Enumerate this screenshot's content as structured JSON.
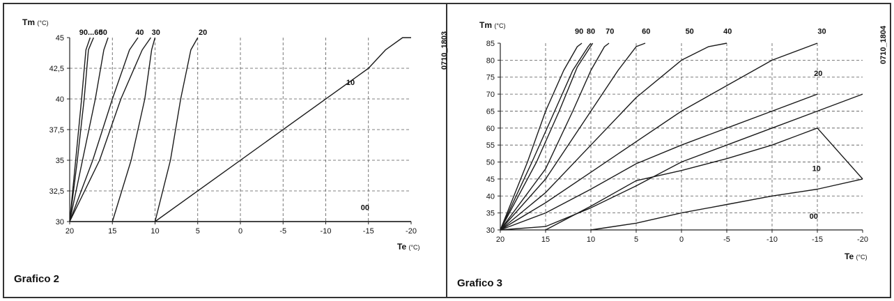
{
  "colors": {
    "line": "#1a1a1a",
    "grid": "#555555",
    "background": "#ffffff"
  },
  "chart_data": [
    {
      "type": "line",
      "caption": "Grafico 2",
      "code": "0710_1803",
      "ylabel": "Tm",
      "ylabel_unit": "(°C)",
      "xlabel": "Te",
      "xlabel_unit": "(°C)",
      "xlim": [
        20,
        -20
      ],
      "ylim": [
        30,
        45
      ],
      "x_ticks": [
        20,
        15,
        10,
        5,
        0,
        -5,
        -10,
        -15,
        -20
      ],
      "x_tick_labels": [
        "20",
        "15",
        "10",
        "5",
        "0",
        "-5",
        "-10",
        "-15",
        "-20"
      ],
      "y_ticks": [
        30,
        32.5,
        35,
        37.5,
        40,
        42.5,
        45
      ],
      "y_tick_labels": [
        "30",
        "32,5",
        "35",
        "37,5",
        "40",
        "42,5",
        "45"
      ],
      "grid": true,
      "series": [
        {
          "name": "90...60",
          "label_pos": [
            17.5,
            45
          ],
          "points": [
            [
              20,
              30
            ],
            [
              19.3,
              35
            ],
            [
              18.6,
              40
            ],
            [
              18.1,
              44
            ],
            [
              17.6,
              45
            ]
          ]
        },
        {
          "name": "",
          "points": [
            [
              20,
              30
            ],
            [
              19.1,
              35
            ],
            [
              18.3,
              40
            ],
            [
              17.8,
              44
            ],
            [
              17.2,
              45
            ]
          ]
        },
        {
          "name": "50",
          "label_pos": [
            16.1,
            45
          ],
          "points": [
            [
              20,
              30
            ],
            [
              18.5,
              35
            ],
            [
              17,
              40
            ],
            [
              16,
              44
            ],
            [
              15.5,
              45
            ]
          ]
        },
        {
          "name": "40",
          "label_pos": [
            11.8,
            45
          ],
          "points": [
            [
              20,
              30
            ],
            [
              17.3,
              35
            ],
            [
              15,
              40
            ],
            [
              13,
              44
            ],
            [
              12,
              45
            ]
          ]
        },
        {
          "name": "30",
          "label_pos": [
            9.9,
            45
          ],
          "points": [
            [
              20,
              30
            ],
            [
              16.5,
              35
            ],
            [
              14,
              40
            ],
            [
              11.5,
              44
            ],
            [
              10.5,
              45
            ]
          ]
        },
        {
          "name": "",
          "points": [
            [
              15,
              30
            ],
            [
              12.8,
              35
            ],
            [
              11.2,
              40
            ],
            [
              10.4,
              44
            ],
            [
              10,
              45
            ]
          ]
        },
        {
          "name": "20",
          "label_pos": [
            4.4,
            45
          ],
          "points": [
            [
              10,
              30
            ],
            [
              8.2,
              35
            ],
            [
              7,
              40
            ],
            [
              5.8,
              44
            ],
            [
              5,
              45
            ]
          ]
        },
        {
          "name": "10",
          "label_pos": [
            -12.9,
            40.9
          ],
          "points": [
            [
              10,
              30
            ],
            [
              -15,
              42.5
            ],
            [
              -17,
              44
            ],
            [
              -19,
              45
            ],
            [
              -20,
              45
            ]
          ]
        },
        {
          "name": "00",
          "label_pos": [
            -14.6,
            30.7
          ],
          "points": [
            [
              20,
              30
            ],
            [
              -20,
              30
            ]
          ]
        }
      ]
    },
    {
      "type": "line",
      "caption": "Grafico 3",
      "code": "0710_1804",
      "ylabel": "Tm",
      "ylabel_unit": "(°C)",
      "xlabel": "Te",
      "xlabel_unit": "(°C)",
      "xlim": [
        20,
        -20
      ],
      "ylim": [
        30,
        85
      ],
      "x_ticks": [
        20,
        15,
        10,
        5,
        0,
        -5,
        -10,
        -15,
        -20
      ],
      "x_tick_labels": [
        "20",
        "15",
        "10",
        "5",
        "0",
        "-5",
        "-10",
        "-15",
        "-20"
      ],
      "y_ticks": [
        30,
        35,
        40,
        45,
        50,
        55,
        60,
        65,
        70,
        75,
        80,
        85
      ],
      "y_tick_labels": [
        "30",
        "35",
        "40",
        "45",
        "50",
        "55",
        "60",
        "65",
        "70",
        "75",
        "80",
        "85"
      ],
      "grid": true,
      "series": [
        {
          "name": "90",
          "label_pos": [
            11.3,
            87
          ],
          "points": [
            [
              20,
              30
            ],
            [
              17,
              50
            ],
            [
              15,
              65
            ],
            [
              13,
              77
            ],
            [
              11.5,
              84
            ],
            [
              11,
              85
            ]
          ]
        },
        {
          "name": "80",
          "label_pos": [
            10,
            87
          ],
          "points": [
            [
              20,
              30
            ],
            [
              16.5,
              50
            ],
            [
              14,
              65
            ],
            [
              12,
              77
            ],
            [
              10.3,
              84
            ],
            [
              10,
              85
            ]
          ]
        },
        {
          "name": "",
          "points": [
            [
              20,
              30
            ],
            [
              16,
              50
            ],
            [
              13.5,
              65
            ],
            [
              11.5,
              78
            ],
            [
              9.8,
              85
            ]
          ]
        },
        {
          "name": "70",
          "label_pos": [
            7.9,
            87
          ],
          "points": [
            [
              20,
              30
            ],
            [
              15,
              48
            ],
            [
              12,
              65
            ],
            [
              10,
              77
            ],
            [
              8.5,
              84
            ],
            [
              8,
              85
            ]
          ]
        },
        {
          "name": "60",
          "label_pos": [
            3.9,
            87
          ],
          "points": [
            [
              20,
              30
            ],
            [
              15,
              45
            ],
            [
              10,
              65
            ],
            [
              7,
              77
            ],
            [
              5,
              84
            ],
            [
              4,
              85
            ]
          ]
        },
        {
          "name": "50",
          "label_pos": [
            -0.9,
            87
          ],
          "points": [
            [
              20,
              30
            ],
            [
              15,
              41
            ],
            [
              10,
              55
            ],
            [
              5,
              69
            ],
            [
              0,
              80
            ],
            [
              -3,
              84
            ],
            [
              -5,
              85
            ]
          ]
        },
        {
          "name": "40",
          "label_pos": [
            -5.1,
            87
          ],
          "points": [
            [
              20,
              30
            ],
            [
              15,
              38
            ],
            [
              10,
              47
            ],
            [
              5,
              56
            ],
            [
              0,
              65
            ],
            [
              -5,
              72.5
            ],
            [
              -10,
              80
            ],
            [
              -15,
              85
            ]
          ]
        },
        {
          "name": "30",
          "label_pos": [
            -15.5,
            87
          ],
          "points": [
            [
              20,
              30
            ],
            [
              15,
              35
            ],
            [
              10,
              42
            ],
            [
              5,
              49.5
            ],
            [
              0,
              55
            ],
            [
              -5,
              60
            ],
            [
              -10,
              65
            ],
            [
              -15,
              70
            ]
          ]
        },
        {
          "name": "20",
          "label_pos": [
            -15.1,
            74.5
          ],
          "points": [
            [
              20,
              30
            ],
            [
              15,
              31
            ],
            [
              10,
              36.5
            ],
            [
              5,
              43
            ],
            [
              0,
              50
            ],
            [
              -5,
              55
            ],
            [
              -10,
              60
            ],
            [
              -15,
              65
            ],
            [
              -20,
              70
            ]
          ]
        },
        {
          "name": "10",
          "label_pos": [
            -14.9,
            46.5
          ],
          "points": [
            [
              15,
              30
            ],
            [
              10,
              37
            ],
            [
              5,
              44.5
            ],
            [
              0,
              47.5
            ],
            [
              -5,
              51
            ],
            [
              -10,
              55
            ],
            [
              -15,
              60
            ],
            [
              -20,
              45
            ]
          ]
        },
        {
          "name": "00",
          "label_pos": [
            -14.6,
            32.5
          ],
          "points": [
            [
              10,
              30
            ],
            [
              5,
              32
            ],
            [
              0,
              35
            ],
            [
              -5,
              37.5
            ],
            [
              -10,
              40
            ],
            [
              -15,
              42
            ],
            [
              -20,
              45
            ]
          ]
        }
      ]
    }
  ]
}
